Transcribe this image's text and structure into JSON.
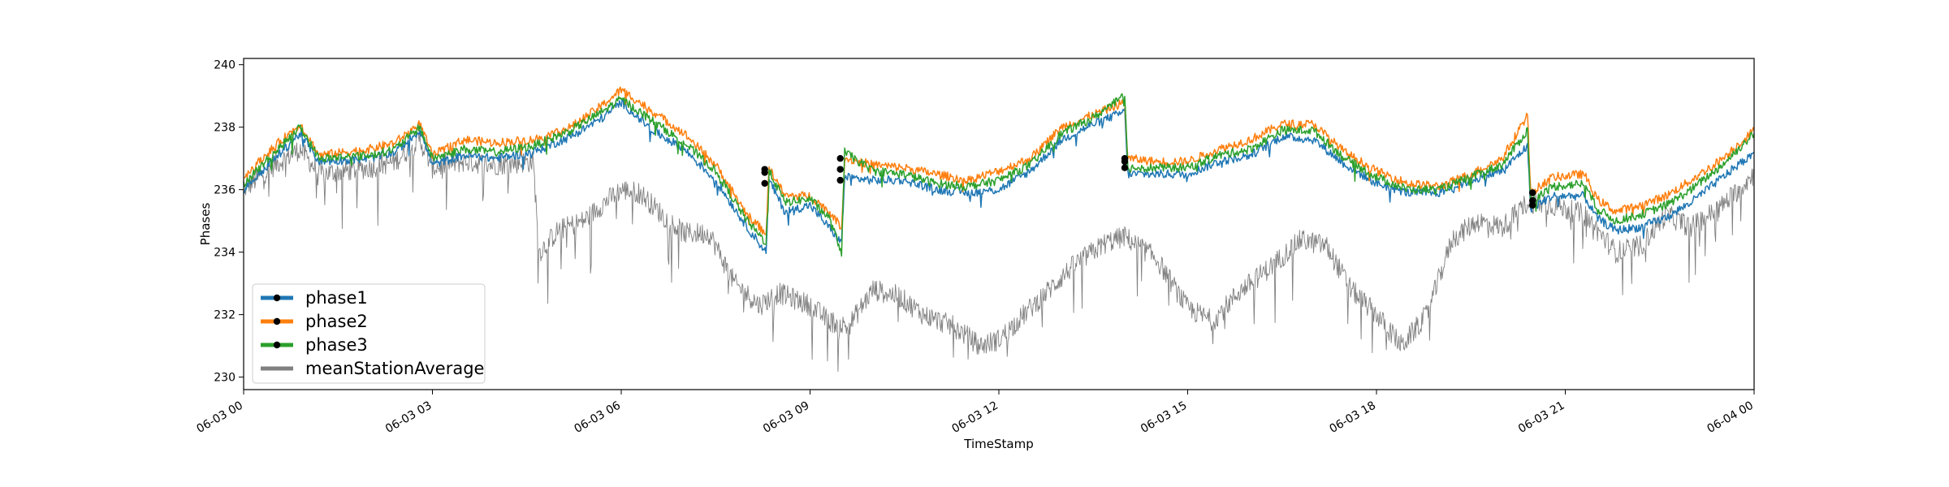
{
  "chart_data": {
    "type": "line",
    "title": "",
    "xlabel": "TimeStamp",
    "ylabel": "Phases",
    "ylim": [
      229.6,
      240.2
    ],
    "y_ticks": [
      230,
      232,
      234,
      236,
      238,
      240
    ],
    "x_ticks": [
      {
        "hour": 0,
        "label": "06-03 00"
      },
      {
        "hour": 3,
        "label": "06-03 03"
      },
      {
        "hour": 6,
        "label": "06-03 06"
      },
      {
        "hour": 9,
        "label": "06-03 09"
      },
      {
        "hour": 12,
        "label": "06-03 12"
      },
      {
        "hour": 15,
        "label": "06-03 15"
      },
      {
        "hour": 18,
        "label": "06-03 18"
      },
      {
        "hour": 21,
        "label": "06-03 21"
      },
      {
        "hour": 24,
        "label": "06-04 00"
      }
    ],
    "xlim_hours": [
      0,
      24
    ],
    "legend_position": "lower-left",
    "series": [
      {
        "name": "phase1",
        "color": "#1f77b4",
        "points": [
          [
            0,
            236.0
          ],
          [
            0.5,
            237.0
          ],
          [
            0.9,
            237.8
          ],
          [
            1.2,
            236.9
          ],
          [
            2,
            237.0
          ],
          [
            2.4,
            237.2
          ],
          [
            2.8,
            237.9
          ],
          [
            3.0,
            236.8
          ],
          [
            3.5,
            237.1
          ],
          [
            4,
            237.0
          ],
          [
            4.6,
            237.2
          ],
          [
            5.2,
            237.7
          ],
          [
            5.7,
            238.3
          ],
          [
            6.0,
            238.8
          ],
          [
            6.5,
            237.9
          ],
          [
            7.0,
            237.3
          ],
          [
            7.5,
            236.3
          ],
          [
            8.0,
            234.8
          ],
          [
            8.3,
            234.0
          ],
          [
            8.35,
            236.3
          ],
          [
            8.6,
            235.3
          ],
          [
            9.0,
            235.5
          ],
          [
            9.3,
            234.8
          ],
          [
            9.5,
            234.3
          ],
          [
            9.55,
            236.4
          ],
          [
            10.0,
            236.3
          ],
          [
            10.5,
            236.3
          ],
          [
            11.0,
            236.0
          ],
          [
            11.5,
            235.9
          ],
          [
            12.0,
            236.0
          ],
          [
            12.5,
            236.6
          ],
          [
            13.0,
            237.6
          ],
          [
            13.5,
            238.1
          ],
          [
            14.0,
            238.5
          ],
          [
            14.05,
            236.5
          ],
          [
            14.5,
            236.5
          ],
          [
            15.0,
            236.5
          ],
          [
            15.5,
            236.9
          ],
          [
            16.0,
            237.1
          ],
          [
            16.5,
            237.7
          ],
          [
            17.0,
            237.6
          ],
          [
            17.5,
            236.8
          ],
          [
            18.0,
            236.2
          ],
          [
            18.5,
            235.9
          ],
          [
            19.0,
            235.9
          ],
          [
            19.5,
            236.3
          ],
          [
            20.0,
            236.6
          ],
          [
            20.4,
            237.4
          ],
          [
            20.45,
            235.4
          ],
          [
            20.8,
            235.8
          ],
          [
            21.3,
            235.8
          ],
          [
            21.5,
            235.1
          ],
          [
            21.8,
            234.7
          ],
          [
            22.2,
            234.8
          ],
          [
            22.6,
            235.1
          ],
          [
            23.0,
            235.6
          ],
          [
            23.5,
            236.4
          ],
          [
            24.0,
            237.2
          ]
        ]
      },
      {
        "name": "phase2",
        "color": "#ff7f0e",
        "points": [
          [
            0,
            236.4
          ],
          [
            0.5,
            237.4
          ],
          [
            0.9,
            238.1
          ],
          [
            1.2,
            237.1
          ],
          [
            2,
            237.3
          ],
          [
            2.4,
            237.5
          ],
          [
            2.8,
            238.1
          ],
          [
            3.0,
            237.1
          ],
          [
            3.5,
            237.6
          ],
          [
            4,
            237.5
          ],
          [
            4.6,
            237.6
          ],
          [
            5.2,
            238.0
          ],
          [
            5.7,
            238.7
          ],
          [
            6.0,
            239.2
          ],
          [
            6.5,
            238.5
          ],
          [
            7.0,
            237.8
          ],
          [
            7.5,
            236.8
          ],
          [
            8.0,
            235.2
          ],
          [
            8.3,
            234.6
          ],
          [
            8.35,
            236.7
          ],
          [
            8.6,
            235.8
          ],
          [
            9.0,
            235.8
          ],
          [
            9.3,
            235.3
          ],
          [
            9.5,
            234.8
          ],
          [
            9.55,
            237.0
          ],
          [
            10.0,
            236.8
          ],
          [
            10.5,
            236.7
          ],
          [
            11.0,
            236.5
          ],
          [
            11.5,
            236.3
          ],
          [
            12.0,
            236.6
          ],
          [
            12.5,
            237.0
          ],
          [
            13.0,
            238.0
          ],
          [
            13.5,
            238.4
          ],
          [
            14.0,
            238.8
          ],
          [
            14.05,
            237.0
          ],
          [
            14.5,
            236.9
          ],
          [
            15.0,
            236.9
          ],
          [
            15.5,
            237.3
          ],
          [
            16.0,
            237.6
          ],
          [
            16.5,
            238.1
          ],
          [
            17.0,
            238.1
          ],
          [
            17.5,
            237.2
          ],
          [
            18.0,
            236.6
          ],
          [
            18.5,
            236.2
          ],
          [
            19.0,
            236.1
          ],
          [
            19.5,
            236.5
          ],
          [
            20.0,
            237.0
          ],
          [
            20.4,
            238.4
          ],
          [
            20.45,
            235.9
          ],
          [
            20.8,
            236.4
          ],
          [
            21.3,
            236.5
          ],
          [
            21.5,
            235.7
          ],
          [
            21.8,
            235.3
          ],
          [
            22.2,
            235.5
          ],
          [
            22.6,
            235.8
          ],
          [
            23.0,
            236.3
          ],
          [
            23.5,
            237.0
          ],
          [
            24.0,
            237.9
          ]
        ]
      },
      {
        "name": "phase3",
        "color": "#2ca02c",
        "points": [
          [
            0,
            236.2
          ],
          [
            0.5,
            237.2
          ],
          [
            0.9,
            238.0
          ],
          [
            1.2,
            237.0
          ],
          [
            2,
            237.1
          ],
          [
            2.4,
            237.3
          ],
          [
            2.8,
            238.0
          ],
          [
            3.0,
            237.0
          ],
          [
            3.5,
            237.3
          ],
          [
            4,
            237.2
          ],
          [
            4.6,
            237.4
          ],
          [
            5.2,
            237.9
          ],
          [
            5.7,
            238.5
          ],
          [
            6.0,
            238.9
          ],
          [
            6.5,
            238.2
          ],
          [
            7.0,
            237.5
          ],
          [
            7.5,
            236.6
          ],
          [
            8.0,
            235.0
          ],
          [
            8.3,
            234.3
          ],
          [
            8.35,
            236.6
          ],
          [
            8.6,
            235.6
          ],
          [
            9.0,
            235.7
          ],
          [
            9.3,
            235.1
          ],
          [
            9.5,
            234.0
          ],
          [
            9.55,
            237.2
          ],
          [
            10.0,
            236.6
          ],
          [
            10.5,
            236.5
          ],
          [
            11.0,
            236.2
          ],
          [
            11.5,
            236.1
          ],
          [
            12.0,
            236.3
          ],
          [
            12.5,
            236.8
          ],
          [
            13.0,
            237.8
          ],
          [
            13.5,
            238.3
          ],
          [
            14.0,
            239.0
          ],
          [
            14.05,
            236.7
          ],
          [
            14.5,
            236.7
          ],
          [
            15.0,
            236.7
          ],
          [
            15.5,
            237.1
          ],
          [
            16.0,
            237.3
          ],
          [
            16.5,
            237.9
          ],
          [
            17.0,
            237.9
          ],
          [
            17.5,
            237.0
          ],
          [
            18.0,
            236.4
          ],
          [
            18.5,
            236.0
          ],
          [
            19.0,
            236.0
          ],
          [
            19.5,
            236.4
          ],
          [
            20.0,
            236.8
          ],
          [
            20.4,
            237.9
          ],
          [
            20.45,
            235.6
          ],
          [
            20.8,
            236.1
          ],
          [
            21.3,
            236.2
          ],
          [
            21.5,
            235.4
          ],
          [
            21.8,
            235.0
          ],
          [
            22.2,
            235.2
          ],
          [
            22.6,
            235.5
          ],
          [
            23.0,
            236.0
          ],
          [
            23.5,
            236.8
          ],
          [
            24.0,
            237.8
          ]
        ]
      },
      {
        "name": "meanStationAverage",
        "color": "#808080",
        "points": [
          [
            0,
            236.0
          ],
          [
            0.5,
            236.8
          ],
          [
            0.9,
            237.3
          ],
          [
            1.2,
            236.5
          ],
          [
            2,
            236.7
          ],
          [
            2.4,
            236.9
          ],
          [
            2.8,
            237.6
          ],
          [
            3.0,
            236.7
          ],
          [
            3.5,
            236.9
          ],
          [
            4.0,
            236.8
          ],
          [
            4.6,
            236.9
          ],
          [
            4.7,
            234.0
          ],
          [
            5.0,
            234.7
          ],
          [
            5.4,
            235.0
          ],
          [
            5.8,
            235.7
          ],
          [
            6.0,
            236.0
          ],
          [
            6.3,
            235.9
          ],
          [
            6.7,
            235.1
          ],
          [
            7.0,
            234.6
          ],
          [
            7.4,
            234.6
          ],
          [
            7.8,
            233.0
          ],
          [
            8.2,
            232.3
          ],
          [
            8.5,
            232.7
          ],
          [
            9.0,
            232.3
          ],
          [
            9.3,
            231.8
          ],
          [
            9.6,
            231.6
          ],
          [
            10.0,
            232.8
          ],
          [
            10.4,
            232.6
          ],
          [
            10.8,
            232.0
          ],
          [
            11.3,
            231.6
          ],
          [
            11.7,
            231.0
          ],
          [
            12.0,
            231.2
          ],
          [
            12.4,
            232.0
          ],
          [
            12.8,
            232.8
          ],
          [
            13.2,
            233.6
          ],
          [
            13.7,
            234.3
          ],
          [
            14.0,
            234.5
          ],
          [
            14.5,
            233.8
          ],
          [
            15.0,
            232.2
          ],
          [
            15.4,
            231.8
          ],
          [
            15.8,
            232.7
          ],
          [
            16.3,
            233.5
          ],
          [
            16.8,
            234.4
          ],
          [
            17.2,
            234.2
          ],
          [
            17.6,
            232.8
          ],
          [
            18.0,
            232.0
          ],
          [
            18.4,
            231.0
          ],
          [
            18.8,
            232.0
          ],
          [
            19.2,
            234.4
          ],
          [
            19.6,
            235.0
          ],
          [
            20.0,
            234.8
          ],
          [
            20.4,
            235.6
          ],
          [
            20.8,
            235.5
          ],
          [
            21.3,
            235.2
          ],
          [
            21.8,
            234.0
          ],
          [
            22.2,
            234.2
          ],
          [
            22.6,
            235.2
          ],
          [
            23.0,
            234.8
          ],
          [
            23.5,
            235.5
          ],
          [
            24.0,
            236.5
          ]
        ]
      }
    ],
    "markers": [
      {
        "x": 8.28,
        "values": [
          236.2,
          236.55,
          236.65
        ]
      },
      {
        "x": 9.48,
        "values": [
          236.3,
          236.65,
          237.0
        ]
      },
      {
        "x": 14.0,
        "values": [
          236.7,
          236.9,
          237.0
        ]
      },
      {
        "x": 20.48,
        "values": [
          235.5,
          235.65,
          235.9
        ]
      }
    ]
  }
}
